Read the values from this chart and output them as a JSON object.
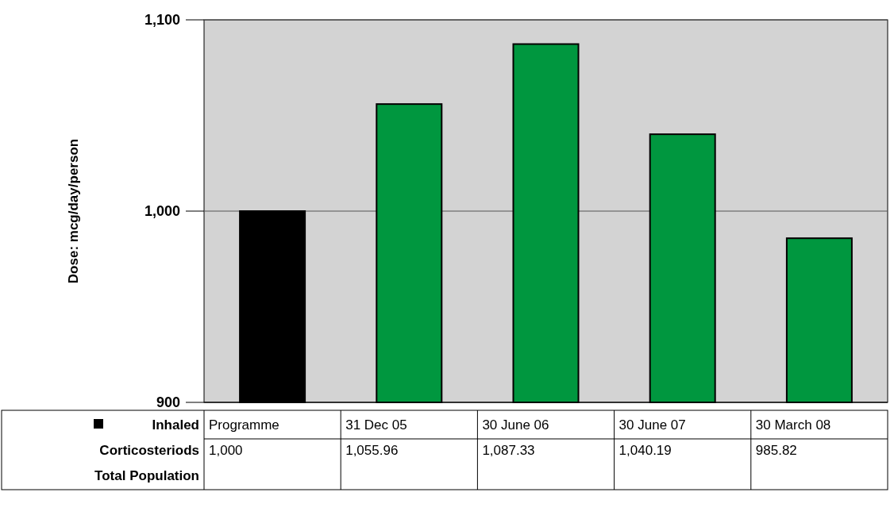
{
  "chart_data": {
    "type": "bar",
    "ylabel": "Dose: mcg/day/person",
    "categories": [
      "Programme",
      "31 Dec 05",
      "30 June 06",
      "30 June 07",
      "30 March 08"
    ],
    "series": [
      {
        "name": "Inhaled Corticosteriods Total Population",
        "color": "#000000",
        "colors": [
          "#000000",
          "#00973f",
          "#00973f",
          "#00973f",
          "#00973f"
        ],
        "values": [
          1000,
          1055.96,
          1087.33,
          1040.19,
          985.82
        ],
        "value_labels": [
          "1,000",
          "1,055.96",
          "1,087.33",
          "1,040.19",
          "985.82"
        ]
      }
    ],
    "ylim": [
      900,
      1100
    ],
    "yticks": [
      {
        "value": 900,
        "label": "900"
      },
      {
        "value": 1000,
        "label": "1,000"
      },
      {
        "value": 1100,
        "label": "1,100"
      }
    ],
    "grid": "y",
    "legend": "bottom"
  }
}
